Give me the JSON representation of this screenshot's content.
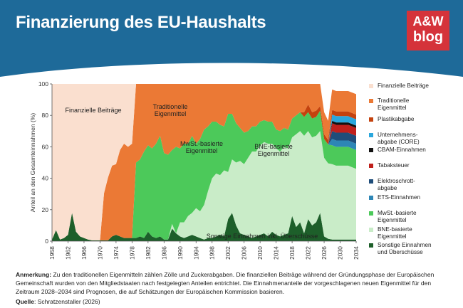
{
  "header": {
    "title": "Finanzierung des EU-Haushalts",
    "logo_line1": "A&W",
    "logo_line2": "blog",
    "bg": "#1e6a99"
  },
  "note": {
    "label": "Anmerkung:",
    "text": "Zu den traditionellen Eigenmitteln zählen Zölle und Zuckerabgaben. Die finanziellen Beiträge während der Gründungsphase der Europäischen Gemeinschaft wurden von den Mitgliedstaaten nach festgelegten Anteilen entrichtet. Die Einnahmenanteile der vorgeschlagenen neuen Eigenmittel für den Zeitraum 2028–2034 sind Prognosen, die auf Schätzungen der Europäischen Kommission basieren.",
    "source_label": "Quelle",
    "source_text": ": Schratzenstaller (2026)"
  },
  "chart_data": {
    "type": "area",
    "stacked": true,
    "ylabel": "Anteil an den Gesamteinnahmen (%)",
    "ylim": [
      0,
      100
    ],
    "yticks": [
      "0",
      "20",
      "40",
      "60",
      "80",
      "100"
    ],
    "xlim": [
      1958,
      2034
    ],
    "xticks": [
      "1958",
      "1962",
      "1966",
      "1970",
      "1974",
      "1978",
      "1982",
      "1986",
      "1990",
      "1994",
      "1998",
      "2002",
      "2006",
      "2010",
      "2014",
      "2018",
      "2022",
      "2026",
      "2030",
      "2034"
    ],
    "grid": false,
    "legend_position": "right",
    "annotations": {
      "fin": "Finanzielle Beiträge",
      "trad": "Traditionelle Eigenmittel",
      "mwst": "MwSt.-basierte Eigenmittel",
      "bne": "BNE-basierte Eigenmittel",
      "sonst": "Sonstige Einnahmen inkl. Überschüsse"
    },
    "x": [
      1958,
      1959,
      1960,
      1961,
      1962,
      1963,
      1964,
      1965,
      1966,
      1967,
      1968,
      1969,
      1970,
      1971,
      1972,
      1973,
      1974,
      1975,
      1976,
      1977,
      1978,
      1979,
      1980,
      1981,
      1982,
      1983,
      1984,
      1985,
      1986,
      1987,
      1988,
      1989,
      1990,
      1991,
      1992,
      1993,
      1994,
      1995,
      1996,
      1997,
      1998,
      1999,
      2000,
      2001,
      2002,
      2003,
      2004,
      2005,
      2006,
      2007,
      2008,
      2009,
      2010,
      2011,
      2012,
      2013,
      2014,
      2015,
      2016,
      2017,
      2018,
      2019,
      2020,
      2021,
      2022,
      2023,
      2024,
      2025,
      2026,
      2027,
      2028,
      2029,
      2030,
      2031,
      2032,
      2033,
      2034
    ],
    "series": [
      {
        "name": "Sonstige Einnahmen und Überschüsse",
        "color": "#1d5f2a",
        "values": [
          1,
          7,
          1,
          2,
          4,
          18,
          6,
          3,
          2,
          1,
          0.5,
          0.5,
          0.5,
          0.5,
          0.5,
          3,
          4,
          3,
          2,
          2,
          2,
          2,
          3,
          2,
          6,
          3,
          2,
          3,
          1,
          1,
          8,
          5,
          3,
          2,
          3,
          4,
          3,
          2,
          1,
          2,
          2,
          3,
          4,
          3,
          14,
          18,
          10,
          5,
          4,
          3,
          2,
          3,
          4,
          5,
          3,
          6,
          4,
          3,
          4,
          5,
          16,
          9,
          12,
          5,
          14,
          10,
          12,
          18,
          3,
          1.5,
          1,
          1,
          1,
          1,
          1,
          1,
          1
        ]
      },
      {
        "name": "BNE-basierte Eigenmittel",
        "color": "#c9ecc8",
        "values": [
          0,
          0,
          0,
          0,
          0,
          0,
          0,
          0,
          0,
          0,
          0,
          0,
          0,
          0,
          0,
          0,
          0,
          0,
          0,
          0,
          0,
          0,
          0,
          0,
          0,
          0,
          0,
          0,
          0,
          0,
          3,
          0,
          9,
          10,
          13,
          14,
          18,
          17,
          22,
          30,
          38,
          40,
          38,
          42,
          30,
          34,
          40,
          46,
          45,
          50,
          55,
          54,
          57,
          58,
          59,
          56,
          55,
          54,
          56,
          54,
          50,
          59,
          58,
          62,
          56,
          56,
          55,
          52,
          50,
          48,
          48,
          47,
          47,
          47,
          47,
          46,
          45
        ]
      },
      {
        "name": "MwSt.-basierte Eigenmittel",
        "color": "#4cc95a",
        "values": [
          0,
          0,
          0,
          0,
          0,
          0,
          0,
          0,
          0,
          0,
          0,
          0,
          0,
          0,
          0,
          0,
          0,
          0,
          0,
          0,
          0,
          48,
          49,
          55,
          55,
          56,
          60,
          64,
          55,
          54,
          47,
          55,
          47,
          50,
          46,
          49,
          41,
          46,
          48,
          41,
          36,
          33,
          32,
          28,
          37,
          29,
          25,
          21,
          20,
          17,
          16,
          16,
          15,
          14,
          14,
          14,
          12,
          13,
          12,
          12,
          12,
          12,
          12,
          12,
          12,
          12,
          12,
          13,
          12,
          12,
          12,
          12,
          12,
          12,
          12,
          12,
          12
        ]
      },
      {
        "name": "ETS-Einnahmen",
        "color": "#2d86b6",
        "values": [
          0,
          0,
          0,
          0,
          0,
          0,
          0,
          0,
          0,
          0,
          0,
          0,
          0,
          0,
          0,
          0,
          0,
          0,
          0,
          0,
          0,
          0,
          0,
          0,
          0,
          0,
          0,
          0,
          0,
          0,
          0,
          0,
          0,
          0,
          0,
          0,
          0,
          0,
          0,
          0,
          0,
          0,
          0,
          0,
          0,
          0,
          0,
          0,
          0,
          0,
          0,
          0,
          0,
          0,
          0,
          0,
          0,
          0,
          0,
          0,
          0,
          0,
          0,
          0,
          0,
          0,
          0,
          0,
          0,
          0,
          4,
          4,
          4,
          4,
          4,
          4,
          4
        ]
      },
      {
        "name": "Elektroschrott-abgabe",
        "color": "#1f4d7a",
        "values": [
          0,
          0,
          0,
          0,
          0,
          0,
          0,
          0,
          0,
          0,
          0,
          0,
          0,
          0,
          0,
          0,
          0,
          0,
          0,
          0,
          0,
          0,
          0,
          0,
          0,
          0,
          0,
          0,
          0,
          0,
          0,
          0,
          0,
          0,
          0,
          0,
          0,
          0,
          0,
          0,
          0,
          0,
          0,
          0,
          0,
          0,
          0,
          0,
          0,
          0,
          0,
          0,
          0,
          0,
          0,
          0,
          0,
          0,
          0,
          0,
          0,
          0,
          0,
          0,
          0,
          0,
          0,
          0,
          0,
          0,
          5,
          5,
          5,
          5,
          5,
          5,
          5
        ]
      },
      {
        "name": "Tabaksteuer",
        "color": "#c0201c",
        "values": [
          0,
          0,
          0,
          0,
          0,
          0,
          0,
          0,
          0,
          0,
          0,
          0,
          0,
          0,
          0,
          0,
          0,
          0,
          0,
          0,
          0,
          0,
          0,
          0,
          0,
          0,
          0,
          0,
          0,
          0,
          0,
          0,
          0,
          0,
          0,
          0,
          0,
          0,
          0,
          0,
          0,
          0,
          0,
          0,
          0,
          0,
          0,
          0,
          0,
          0,
          0,
          0,
          0,
          0,
          0,
          0,
          0,
          0,
          0,
          0,
          0,
          0,
          0,
          0,
          0,
          0,
          0,
          0,
          0,
          0,
          5,
          5,
          5,
          5,
          5,
          5,
          5
        ]
      },
      {
        "name": "CBAM-Einnahmen",
        "color": "#111111",
        "values": [
          0,
          0,
          0,
          0,
          0,
          0,
          0,
          0,
          0,
          0,
          0,
          0,
          0,
          0,
          0,
          0,
          0,
          0,
          0,
          0,
          0,
          0,
          0,
          0,
          0,
          0,
          0,
          0,
          0,
          0,
          0,
          0,
          0,
          0,
          0,
          0,
          0,
          0,
          0,
          0,
          0,
          0,
          0,
          0,
          0,
          0,
          0,
          0,
          0,
          0,
          0,
          0,
          0,
          0,
          0,
          0,
          0,
          0,
          0,
          0,
          0,
          0,
          0,
          0,
          0,
          0,
          0,
          0,
          0,
          0,
          1.5,
          1.5,
          1.5,
          1.5,
          1.5,
          1.5,
          1.5
        ]
      },
      {
        "name": "Unternehmens-abgabe (CORE)",
        "color": "#2aa7dd",
        "values": [
          0,
          0,
          0,
          0,
          0,
          0,
          0,
          0,
          0,
          0,
          0,
          0,
          0,
          0,
          0,
          0,
          0,
          0,
          0,
          0,
          0,
          0,
          0,
          0,
          0,
          0,
          0,
          0,
          0,
          0,
          0,
          0,
          0,
          0,
          0,
          0,
          0,
          0,
          0,
          0,
          0,
          0,
          0,
          0,
          0,
          0,
          0,
          0,
          0,
          0,
          0,
          0,
          0,
          0,
          0,
          0,
          0,
          0,
          0,
          0,
          0,
          0,
          0,
          0,
          0,
          0,
          0,
          0,
          0,
          0,
          4,
          4,
          4,
          4,
          4,
          4,
          4
        ]
      },
      {
        "name": "Plastikabgabe",
        "color": "#c4420e",
        "values": [
          0,
          0,
          0,
          0,
          0,
          0,
          0,
          0,
          0,
          0,
          0,
          0,
          0,
          0,
          0,
          0,
          0,
          0,
          0,
          0,
          0,
          0,
          0,
          0,
          0,
          0,
          0,
          0,
          0,
          0,
          0,
          0,
          0,
          0,
          0,
          0,
          0,
          0,
          0,
          0,
          0,
          0,
          0,
          0,
          0,
          0,
          0,
          0,
          0,
          0,
          0,
          0,
          0,
          0,
          0,
          0,
          0,
          0,
          0,
          0,
          0,
          0,
          0,
          3,
          5,
          4,
          4,
          3,
          3,
          3,
          3,
          3,
          3,
          3,
          3,
          3,
          3
        ]
      },
      {
        "name": "Traditionelle Eigenmittel",
        "color": "#eb7935",
        "values": [
          0,
          0,
          0,
          0,
          0,
          0,
          0,
          0,
          0,
          0,
          0,
          0,
          0,
          30,
          40,
          45,
          45,
          55,
          60,
          58,
          60,
          50,
          48,
          43,
          39,
          41,
          38,
          33,
          44,
          45,
          42,
          40,
          41,
          38,
          38,
          33,
          38,
          35,
          29,
          27,
          24,
          24,
          26,
          27,
          19,
          19,
          25,
          28,
          31,
          30,
          27,
          27,
          24,
          23,
          24,
          24,
          29,
          30,
          28,
          29,
          22,
          20,
          18,
          18,
          13,
          18,
          17,
          14,
          14,
          12,
          13,
          13,
          13,
          13,
          13,
          13,
          13
        ]
      },
      {
        "name": "Finanzielle Beiträge",
        "color": "#fadfcf",
        "values": [
          99,
          93,
          99,
          98,
          96,
          82,
          94,
          97,
          98,
          99,
          99.5,
          99.5,
          99.5,
          69.5,
          59.5,
          52,
          51,
          42,
          38,
          40,
          38,
          0,
          0,
          0,
          0,
          0,
          0,
          0,
          0,
          0,
          0,
          0,
          0,
          0,
          0,
          0,
          0,
          0,
          0,
          0,
          0,
          0,
          0,
          0,
          0,
          0,
          0,
          0,
          0,
          0,
          0,
          0,
          0,
          0,
          0,
          0,
          0,
          0,
          0,
          0,
          0,
          0,
          0,
          0,
          0,
          0,
          0,
          0,
          0,
          0,
          0,
          0,
          0,
          0,
          0,
          0,
          0
        ]
      }
    ],
    "legend": [
      {
        "label": "Finanzielle Beiträge",
        "color": "#fadfcf"
      },
      {
        "label": "Traditionelle Eigenmittel",
        "color": "#eb7935"
      },
      {
        "label": "Plastikabgabe",
        "color": "#c4420e"
      },
      {
        "label": "Unternehmens-abgabe (CORE)",
        "color": "#2aa7dd"
      },
      {
        "label": "CBAM-Einnahmen",
        "color": "#111111"
      },
      {
        "label": "Tabaksteuer",
        "color": "#c0201c"
      },
      {
        "label": "Elektroschrott-abgabe",
        "color": "#1f4d7a"
      },
      {
        "label": "ETS-Einnahmen",
        "color": "#2d86b6"
      },
      {
        "label": "MwSt.-basierte Eigenmittel",
        "color": "#4cc95a"
      },
      {
        "label": "BNE-basierte Eigenmittel",
        "color": "#c9ecc8"
      },
      {
        "label": "Sonstige Einnahmen und Überschüsse",
        "color": "#1d5f2a"
      }
    ]
  }
}
